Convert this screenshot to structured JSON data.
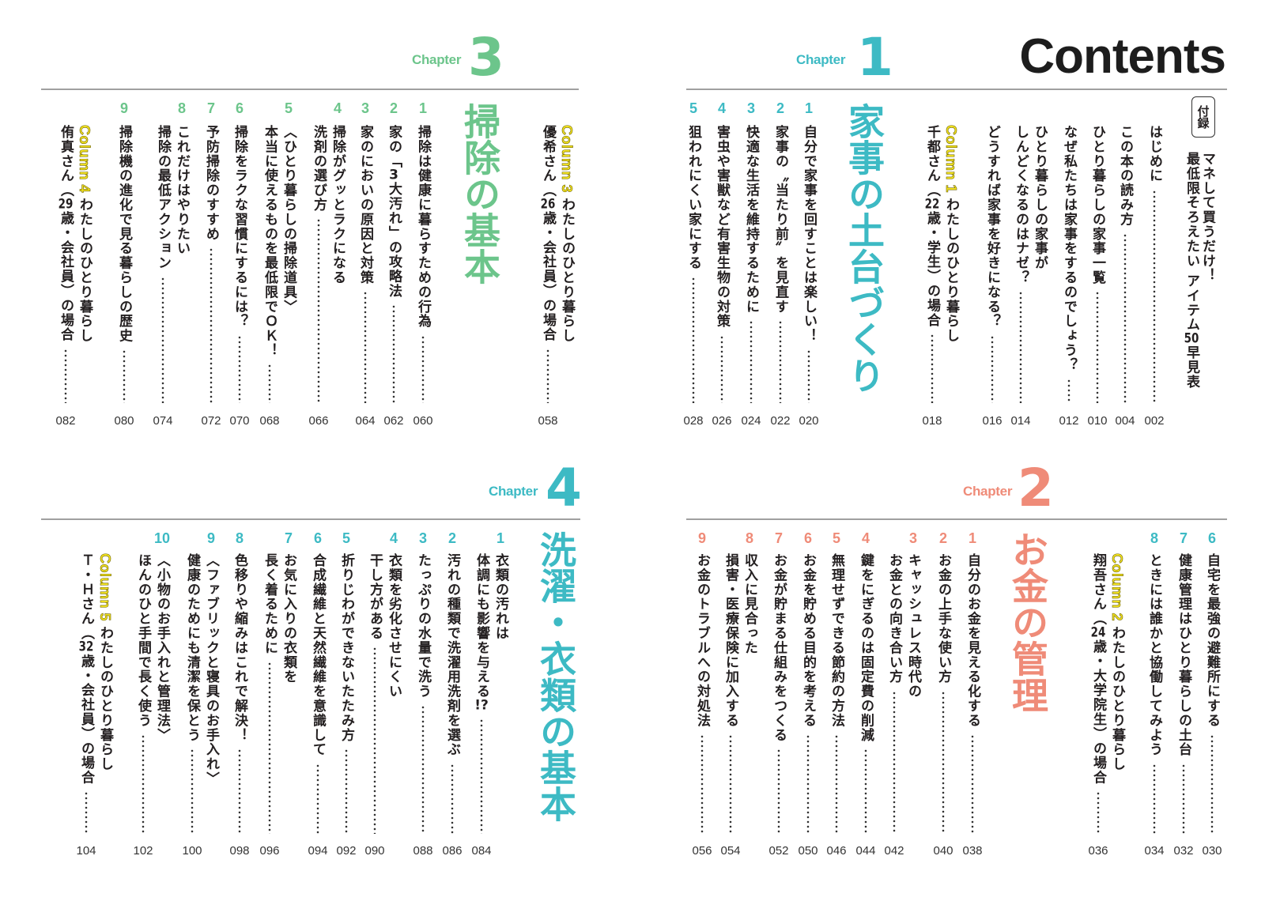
{
  "header": {
    "title": "Contents"
  },
  "chapters": [
    {
      "label": "Chapter",
      "number": "1",
      "title": "家事の土台づくり",
      "color": "#3dbac4"
    },
    {
      "label": "Chapter",
      "number": "2",
      "title": "お金の管理",
      "color": "#ef8b78"
    },
    {
      "label": "Chapter",
      "number": "3",
      "title": "掃除の基本",
      "color": "#6cc58b"
    },
    {
      "label": "Chapter",
      "number": "4",
      "title": "洗濯・衣類の基本",
      "color": "#3dbac4"
    }
  ],
  "column_color": "#f3e31f",
  "blocks": [
    {
      "id": "tr",
      "row": "top",
      "items": [
        {
          "type": "appendix",
          "badge": "付録",
          "lines": [
            "マネして買うだけ！",
            "最低限そろえたい アイテム50早見表"
          ]
        },
        {
          "type": "entry",
          "lines": [
            "はじめに"
          ],
          "page": "002"
        },
        {
          "type": "entry",
          "lines": [
            "この本の読み方"
          ],
          "page": "004"
        },
        {
          "type": "entry",
          "lines": [
            "ひとり暮らしの家事一覧"
          ],
          "page": "010"
        },
        {
          "type": "entry",
          "lines": [
            "なぜ私たちは家事をするのでしょう？"
          ],
          "page": "012"
        },
        {
          "type": "entry",
          "lines": [
            "ひとり暮らしの家事が",
            "しんどくなるのはナゼ？"
          ],
          "page": "014"
        },
        {
          "type": "entry",
          "lines": [
            "どうすれば家事を好きになる？"
          ],
          "page": "016"
        },
        {
          "type": "column",
          "label": "Column 1",
          "lines": [
            "わたしのひとり暮らし",
            "千都さん（22歳・学生）の場合"
          ],
          "page": "018"
        },
        {
          "type": "title",
          "chapter": "1"
        },
        {
          "type": "entry",
          "chapter": "1",
          "num": "1",
          "lines": [
            "自分で家事を回すことは楽しい！"
          ],
          "page": "020"
        },
        {
          "type": "entry",
          "chapter": "1",
          "num": "2",
          "lines": [
            "家事の〝当たり前〟を見直す"
          ],
          "page": "022"
        },
        {
          "type": "entry",
          "chapter": "1",
          "num": "3",
          "lines": [
            "快適な生活を維持するために"
          ],
          "page": "024"
        },
        {
          "type": "entry",
          "chapter": "1",
          "num": "4",
          "lines": [
            "害虫や害獣など有害生物の対策"
          ],
          "page": "026"
        },
        {
          "type": "entry",
          "chapter": "1",
          "num": "5",
          "lines": [
            "狙われにくい家にする"
          ],
          "page": "028"
        }
      ]
    },
    {
      "id": "tl",
      "row": "top",
      "items": [
        {
          "type": "column",
          "label": "Column 3",
          "lines": [
            "わたしのひとり暮らし",
            "優希さん（26歳・会社員）の場合"
          ],
          "page": "058"
        },
        {
          "type": "title",
          "chapter": "3"
        },
        {
          "type": "entry",
          "chapter": "3",
          "num": "1",
          "lines": [
            "掃除は健康に暮らすための行為"
          ],
          "page": "060"
        },
        {
          "type": "entry",
          "chapter": "3",
          "num": "2",
          "lines": [
            "家の「3大汚れ」の攻略法"
          ],
          "page": "062"
        },
        {
          "type": "entry",
          "chapter": "3",
          "num": "3",
          "lines": [
            "家のにおいの原因と対策"
          ],
          "page": "064"
        },
        {
          "type": "entry",
          "chapter": "3",
          "num": "4",
          "lines": [
            "掃除がグッとラクになる",
            "洗剤の選び方"
          ],
          "page": "066"
        },
        {
          "type": "entry",
          "chapter": "3",
          "num": "5",
          "lines": [
            "〈ひとり暮らしの掃除道具〉",
            "本当に使えるものを最低限でＯＫ！"
          ],
          "page": "068"
        },
        {
          "type": "entry",
          "chapter": "3",
          "num": "6",
          "lines": [
            "掃除をラクな習慣にするには？"
          ],
          "page": "070"
        },
        {
          "type": "entry",
          "chapter": "3",
          "num": "7",
          "lines": [
            "予防掃除のすすめ"
          ],
          "page": "072"
        },
        {
          "type": "entry",
          "chapter": "3",
          "num": "8",
          "lines": [
            "これだけはやりたい",
            "掃除の最低アクション"
          ],
          "page": "074"
        },
        {
          "type": "entry",
          "chapter": "3",
          "num": "9",
          "lines": [
            "掃除機の進化で見る暮らしの歴史"
          ],
          "page": "080"
        },
        {
          "type": "column",
          "label": "Column 4",
          "lines": [
            "わたしのひとり暮らし",
            "侑真さん（29歳・会社員）の場合"
          ],
          "page": "082"
        }
      ]
    },
    {
      "id": "br",
      "row": "bottom",
      "items": [
        {
          "type": "entry",
          "chapter": "1",
          "num": "6",
          "lines": [
            "自宅を最強の避難所にする"
          ],
          "page": "030"
        },
        {
          "type": "entry",
          "chapter": "1",
          "num": "7",
          "lines": [
            "健康管理はひとり暮らしの土台"
          ],
          "page": "032"
        },
        {
          "type": "entry",
          "chapter": "1",
          "num": "8",
          "lines": [
            "ときには誰かと協働してみよう"
          ],
          "page": "034"
        },
        {
          "type": "column",
          "label": "Column 2",
          "lines": [
            "わたしのひとり暮らし",
            "翔吾さん（24歳・大学院生）の場合"
          ],
          "page": "036"
        },
        {
          "type": "title",
          "chapter": "2"
        },
        {
          "type": "entry",
          "chapter": "2",
          "num": "1",
          "lines": [
            "自分のお金を見える化する"
          ],
          "page": "038"
        },
        {
          "type": "entry",
          "chapter": "2",
          "num": "2",
          "lines": [
            "お金の上手な使い方"
          ],
          "page": "040"
        },
        {
          "type": "entry",
          "chapter": "2",
          "num": "3",
          "lines": [
            "キャッシュレス時代の",
            "お金との向き合い方"
          ],
          "page": "042"
        },
        {
          "type": "entry",
          "chapter": "2",
          "num": "4",
          "lines": [
            "鍵をにぎるのは固定費の削減"
          ],
          "page": "044"
        },
        {
          "type": "entry",
          "chapter": "2",
          "num": "5",
          "lines": [
            "無理せずできる節約の方法"
          ],
          "page": "046"
        },
        {
          "type": "entry",
          "chapter": "2",
          "num": "6",
          "lines": [
            "お金を貯める目的を考える"
          ],
          "page": "050"
        },
        {
          "type": "entry",
          "chapter": "2",
          "num": "7",
          "lines": [
            "お金が貯まる仕組みをつくる"
          ],
          "page": "052"
        },
        {
          "type": "entry",
          "chapter": "2",
          "num": "8",
          "lines": [
            "収入に見合った",
            "損害・医療保険に加入する"
          ],
          "page": "054"
        },
        {
          "type": "entry",
          "chapter": "2",
          "num": "9",
          "lines": [
            "お金のトラブルへの対処法"
          ],
          "page": "056"
        }
      ]
    },
    {
      "id": "bl",
      "row": "bottom",
      "items": [
        {
          "type": "title",
          "chapter": "4"
        },
        {
          "type": "entry",
          "chapter": "4",
          "num": "1",
          "lines": [
            "衣類の汚れは",
            "体調にも影響を与える!?"
          ],
          "page": "084"
        },
        {
          "type": "entry",
          "chapter": "4",
          "num": "2",
          "lines": [
            "汚れの種類で洗濯用洗剤を選ぶ"
          ],
          "page": "086"
        },
        {
          "type": "entry",
          "chapter": "4",
          "num": "3",
          "lines": [
            "たっぷりの水量で洗う"
          ],
          "page": "088"
        },
        {
          "type": "entry",
          "chapter": "4",
          "num": "4",
          "lines": [
            "衣類を劣化させにくい",
            "干し方がある"
          ],
          "page": "090"
        },
        {
          "type": "entry",
          "chapter": "4",
          "num": "5",
          "lines": [
            "折りじわができないたたみ方"
          ],
          "page": "092"
        },
        {
          "type": "entry",
          "chapter": "4",
          "num": "6",
          "lines": [
            "合成繊維と天然繊維を意識して"
          ],
          "page": "094"
        },
        {
          "type": "entry",
          "chapter": "4",
          "num": "7",
          "lines": [
            "お気に入りの衣類を",
            "長く着るために"
          ],
          "page": "096"
        },
        {
          "type": "entry",
          "chapter": "4",
          "num": "8",
          "lines": [
            "色移りや縮みはこれで解決！"
          ],
          "page": "098"
        },
        {
          "type": "entry",
          "chapter": "4",
          "num": "9",
          "lines": [
            "〈ファブリックと寝具のお手入れ〉",
            "健康のためにも清潔を保とう"
          ],
          "page": "100"
        },
        {
          "type": "entry",
          "chapter": "4",
          "num": "10",
          "lines": [
            "〈小物のお手入れと管理法〉",
            "ほんのひと手間で長く使う"
          ],
          "page": "102"
        },
        {
          "type": "column",
          "label": "Column 5",
          "lines": [
            "わたしのひとり暮らし",
            "Ｔ・Ｈさん（32歳・会社員）の場合"
          ],
          "page": "104"
        }
      ]
    }
  ]
}
